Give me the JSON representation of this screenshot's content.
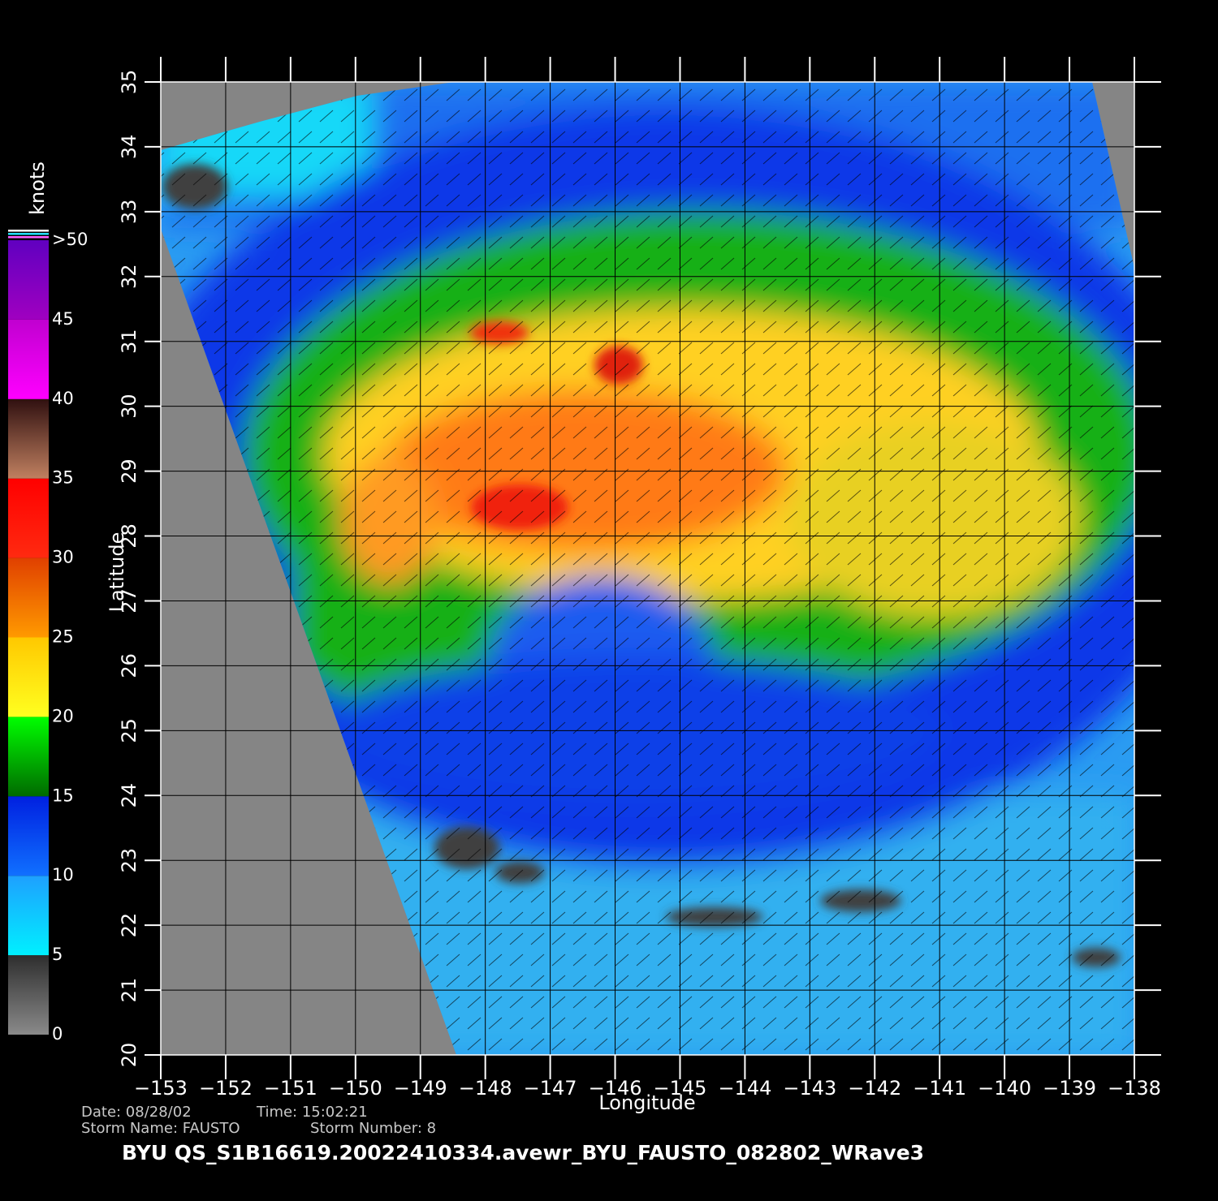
{
  "map": {
    "xlabel": "Longitude",
    "ylabel": "Latitude",
    "xlim": [
      -153,
      -138
    ],
    "ylim": [
      20,
      35
    ],
    "xticks": [
      {
        "value": -153,
        "label": "−153"
      },
      {
        "value": -152,
        "label": "−152"
      },
      {
        "value": -151,
        "label": "−151"
      },
      {
        "value": -150,
        "label": "−150"
      },
      {
        "value": -149,
        "label": "−149"
      },
      {
        "value": -148,
        "label": "−148"
      },
      {
        "value": -147,
        "label": "−147"
      },
      {
        "value": -146,
        "label": "−146"
      },
      {
        "value": -145,
        "label": "−145"
      },
      {
        "value": -144,
        "label": "−144"
      },
      {
        "value": -143,
        "label": "−143"
      },
      {
        "value": -142,
        "label": "−142"
      },
      {
        "value": -141,
        "label": "−141"
      },
      {
        "value": -140,
        "label": "−140"
      },
      {
        "value": -139,
        "label": "−139"
      },
      {
        "value": -138,
        "label": "−138"
      }
    ],
    "yticks": [
      20,
      21,
      22,
      23,
      24,
      25,
      26,
      27,
      28,
      29,
      30,
      31,
      32,
      33,
      34,
      35
    ],
    "grid": true,
    "colorbar": {
      "title": "knots",
      "lim": [
        0,
        50
      ],
      "ticks": [
        0,
        5,
        10,
        15,
        20,
        25,
        30,
        35,
        40,
        45,
        {
          "value": 50,
          "label": ">50"
        }
      ],
      "colors": [
        [
          "#8a8a8a",
          "#2e2e2e"
        ],
        [
          "#00f0ff",
          "#1ea0ff"
        ],
        [
          "#1070ff",
          "#0020e0"
        ],
        [
          "#006a00",
          "#00ff00"
        ],
        [
          "#ffff20",
          "#ffc800"
        ],
        [
          "#ff9a00",
          "#e04000"
        ],
        [
          "#ff2a10",
          "#ff0000"
        ],
        [
          "#c08060",
          "#301010"
        ],
        [
          "#ff00ff",
          "#c000d0"
        ],
        [
          "#a000c0",
          "#6000c0"
        ]
      ]
    },
    "date": "Date: 08/28/02",
    "time": "Time: 15:02:21",
    "storm_name": "Storm Name: FAUSTO",
    "storm_number": "Storm Number: 8",
    "product": "BYU  QS_S1B16619.20022410334.avewr_BYU_FAUSTO_082802_WRave3"
  }
}
